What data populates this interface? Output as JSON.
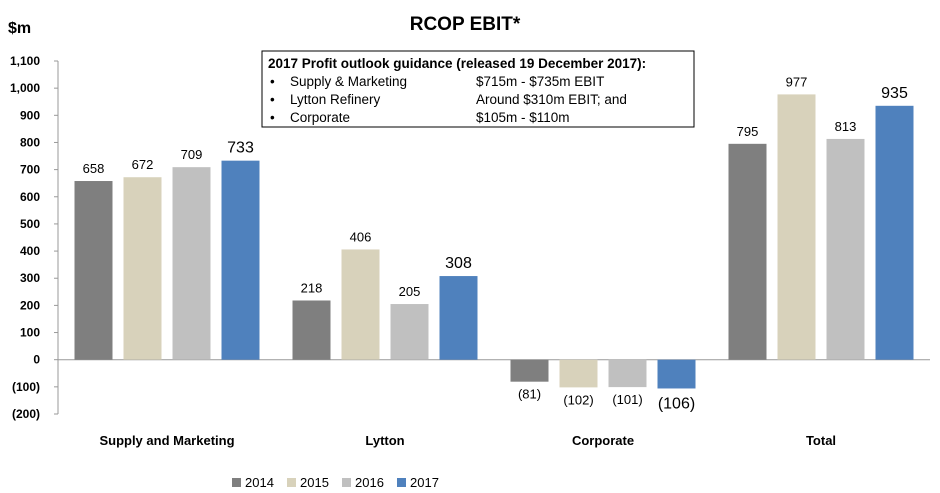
{
  "chart_data": {
    "type": "bar",
    "title": "RCOP EBIT*",
    "unit_label": "$m",
    "categories": [
      "Supply and Marketing",
      "Lytton",
      "Corporate",
      "Total"
    ],
    "series": [
      {
        "name": "2014",
        "color": "#7f7f7f",
        "values": [
          658,
          218,
          -81,
          795
        ],
        "labels": [
          "658",
          "218",
          "(81)",
          "795"
        ]
      },
      {
        "name": "2015",
        "color": "#d8d2bb",
        "values": [
          672,
          406,
          -102,
          977
        ],
        "labels": [
          "672",
          "406",
          "(102)",
          "977"
        ]
      },
      {
        "name": "2016",
        "color": "#c0c0c0",
        "values": [
          709,
          205,
          -101,
          813
        ],
        "labels": [
          "709",
          "205",
          "(101)",
          "813"
        ]
      },
      {
        "name": "2017",
        "color": "#4f81bd",
        "values": [
          733,
          308,
          -106,
          935
        ],
        "labels": [
          "733",
          "308",
          "(106)",
          "935"
        ]
      }
    ],
    "ylim": [
      -200,
      1100
    ],
    "yticks": [
      1100,
      1000,
      900,
      800,
      700,
      600,
      500,
      400,
      300,
      200,
      100,
      0,
      -100,
      -200
    ],
    "ytick_labels": [
      "1,100",
      "1,000",
      "900",
      "800",
      "700",
      "600",
      "500",
      "400",
      "300",
      "200",
      "100",
      "0",
      "(100)",
      "(200)"
    ],
    "legend_position": "bottom-center",
    "grid": false
  },
  "guidance_box": {
    "title": "2017 Profit outlook guidance (released 19 December 2017):",
    "items": [
      {
        "bullet": "•",
        "label": "Supply & Marketing",
        "value": "$715m - $735m EBIT"
      },
      {
        "bullet": "•",
        "label": "Lytton Refinery",
        "value": "Around $310m EBIT; and"
      },
      {
        "bullet": "•",
        "label": "Corporate",
        "value": "$105m - $110m"
      }
    ]
  }
}
